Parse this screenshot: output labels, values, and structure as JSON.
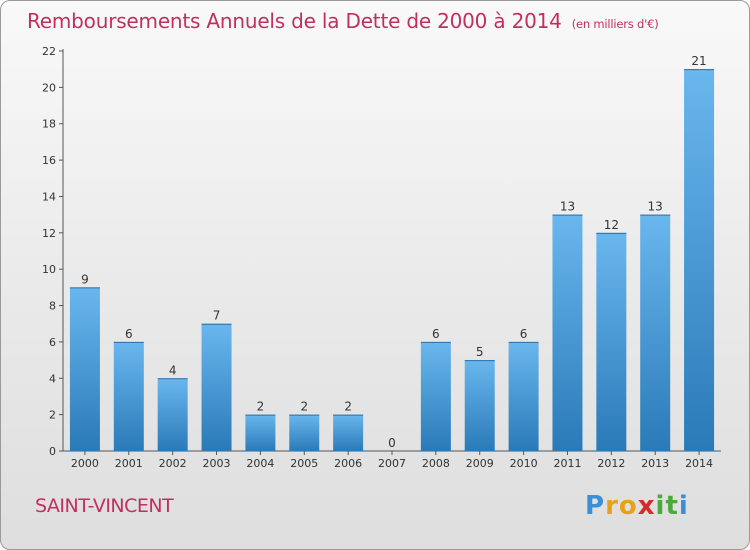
{
  "title": "Remboursements Annuels de la Dette de 2000 à 2014",
  "unit_note": "(en milliers d'€)",
  "commune": "SAINT-VINCENT",
  "logo": {
    "letters": [
      "P",
      "r",
      "o",
      "x",
      "i",
      "t",
      "i"
    ],
    "colors": [
      "#3b8fd6",
      "#e8a21a",
      "#e8a21a",
      "#d62a2a",
      "#4aaa3a",
      "#4aaa3a",
      "#3b8fd6"
    ]
  },
  "colors": {
    "title": "#c0305f",
    "bar_light": "#6ab7ee",
    "bar_dark": "#2a7ab8"
  },
  "chart_data": {
    "type": "bar",
    "categories": [
      "2000",
      "2001",
      "2002",
      "2003",
      "2004",
      "2005",
      "2006",
      "2007",
      "2008",
      "2009",
      "2010",
      "2011",
      "2012",
      "2013",
      "2014"
    ],
    "values": [
      9,
      6,
      4,
      7,
      2,
      2,
      2,
      0,
      6,
      5,
      6,
      13,
      12,
      13,
      21
    ],
    "ylim": [
      0,
      22
    ],
    "yticks": [
      0,
      2,
      4,
      6,
      8,
      10,
      12,
      14,
      16,
      18,
      20,
      22
    ],
    "grid": false
  }
}
